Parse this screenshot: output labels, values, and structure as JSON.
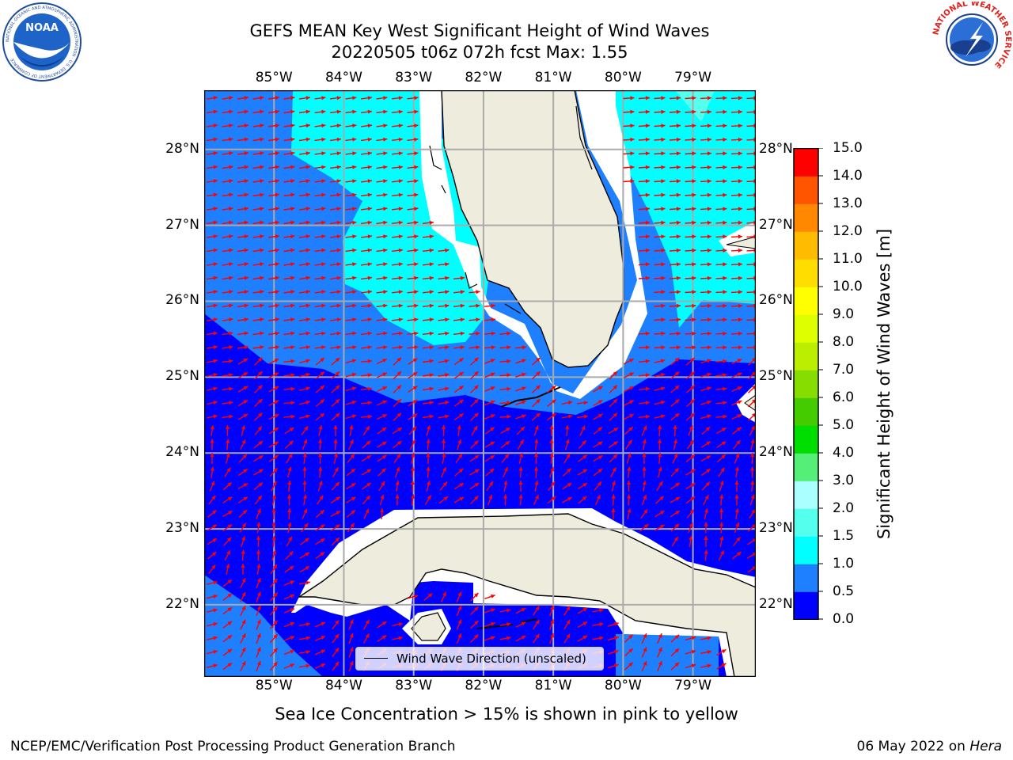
{
  "header": {
    "title_line1": "GEFS MEAN Key West Significant Height of Wind Waves",
    "title_line2": "20220505 t06z 072h fcst   Max: 1.55"
  },
  "logos": {
    "noaa_text": "NOAA",
    "noaa_ring_text": "NATIONAL OCEANIC AND ATMOSPHERIC ADMINISTRATION · U.S. DEPARTMENT OF COMMERCE",
    "nws_ring_text": "NATIONAL WEATHER SERVICE"
  },
  "map": {
    "lon_labels": [
      "85°W",
      "84°W",
      "83°W",
      "82°W",
      "81°W",
      "80°W",
      "79°W"
    ],
    "lon_values": [
      -85,
      -84,
      -83,
      -82,
      -81,
      -80,
      -79
    ],
    "lat_labels": [
      "28°N",
      "27°N",
      "26°N",
      "25°N",
      "24°N",
      "23°N",
      "22°N"
    ],
    "lat_values": [
      28,
      27,
      26,
      25,
      24,
      23,
      22
    ],
    "lon_range": [
      -86.0,
      -78.1
    ],
    "lat_range": [
      21.05,
      28.78
    ],
    "grid": true,
    "arrow_color": "#ff0000",
    "land_color": "#eeecdc",
    "legend_label": "Wind Wave Direction (unscaled)"
  },
  "colorbar": {
    "title": "Significant Height of Wind Waves [m]",
    "levels": [
      "0.0",
      "0.5",
      "1.0",
      "1.5",
      "2.0",
      "3.0",
      "4.0",
      "5.0",
      "6.0",
      "7.0",
      "8.0",
      "9.0",
      "10.0",
      "11.0",
      "12.0",
      "13.0",
      "14.0",
      "15.0"
    ],
    "colors": [
      "#0000ff",
      "#1e7fff",
      "#00ffff",
      "#55ffee",
      "#aaffff",
      "#55ee77",
      "#00dd00",
      "#44cc00",
      "#88dd00",
      "#bbee00",
      "#ddff00",
      "#ffff00",
      "#ffdd00",
      "#ffbb00",
      "#ff8800",
      "#ff5500",
      "#ff0000"
    ]
  },
  "notes": {
    "sea_ice": "Sea Ice Concentration > 15% is shown in pink to yellow"
  },
  "footer": {
    "left": "NCEP/EMC/Verification Post Processing Product Generation Branch",
    "right_date": "06 May 2022 on",
    "right_host": "Hera"
  }
}
